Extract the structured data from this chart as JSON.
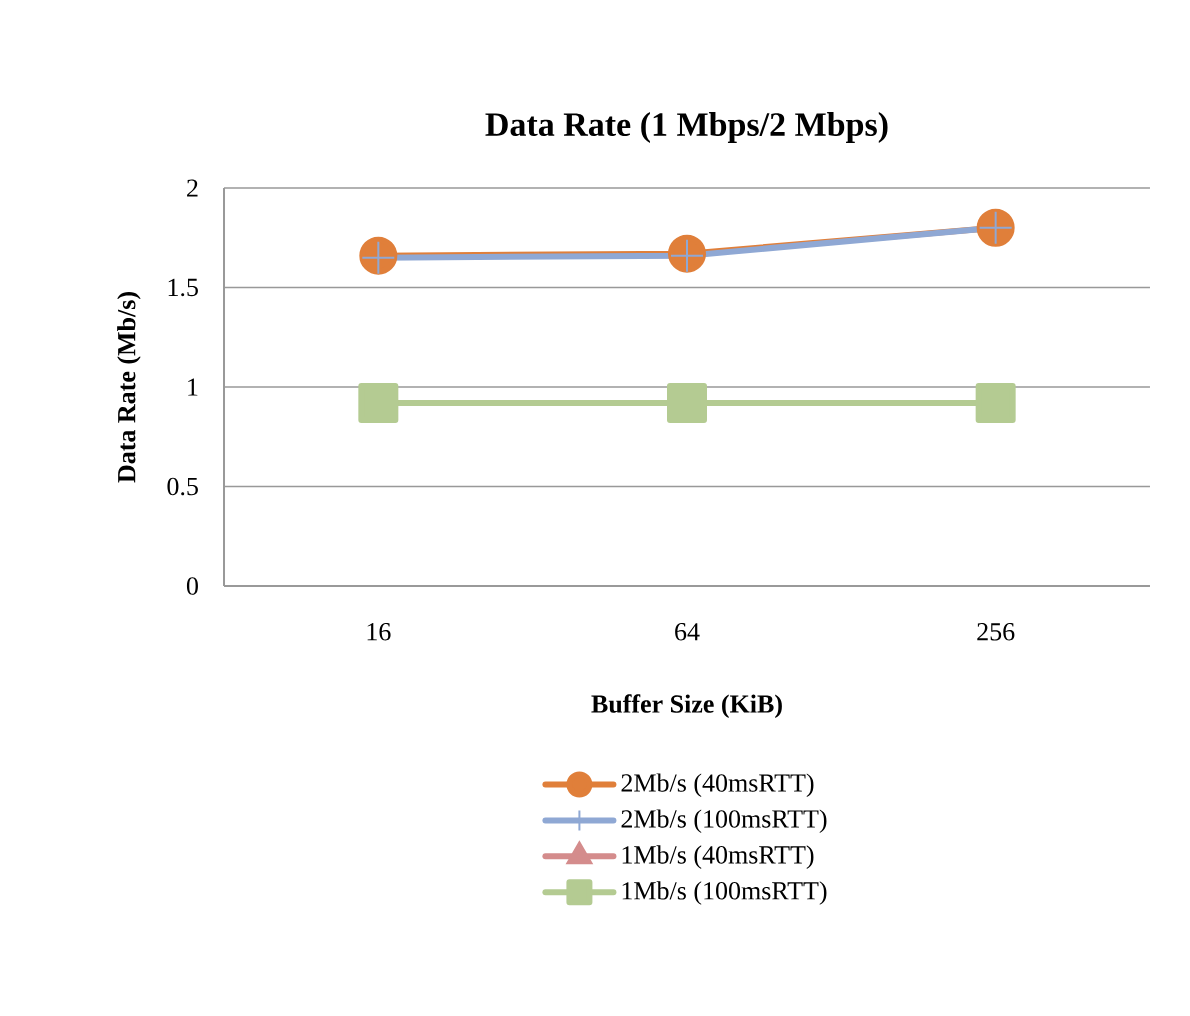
{
  "chart_data": {
    "type": "line",
    "title": "Data Rate (1 Mbps/2 Mbps)",
    "xlabel": "Buffer Size (KiB)",
    "ylabel": "Data Rate (Mb/s)",
    "categories": [
      "16",
      "64",
      "256"
    ],
    "series": [
      {
        "name": "2Mb/s (40msRTT)",
        "color": "#e07f3a",
        "marker": "circle",
        "values": [
          1.66,
          1.67,
          1.8
        ]
      },
      {
        "name": "2Mb/s (100msRTT)",
        "color": "#8fa8d4",
        "marker": "cross",
        "values": [
          1.65,
          1.66,
          1.8
        ]
      },
      {
        "name": "1Mb/s (40msRTT)",
        "color": "#d48c8c",
        "marker": "triangle",
        "values": [
          null,
          null,
          null
        ]
      },
      {
        "name": "1Mb/s (100msRTT)",
        "color": "#b4cb92",
        "marker": "square",
        "values": [
          0.92,
          0.92,
          0.92
        ]
      }
    ],
    "ylim": [
      0,
      2
    ],
    "yticks": [
      0,
      0.5,
      1,
      1.5,
      2
    ],
    "grid": "y",
    "legend": "bottom",
    "line_style": "solid"
  }
}
